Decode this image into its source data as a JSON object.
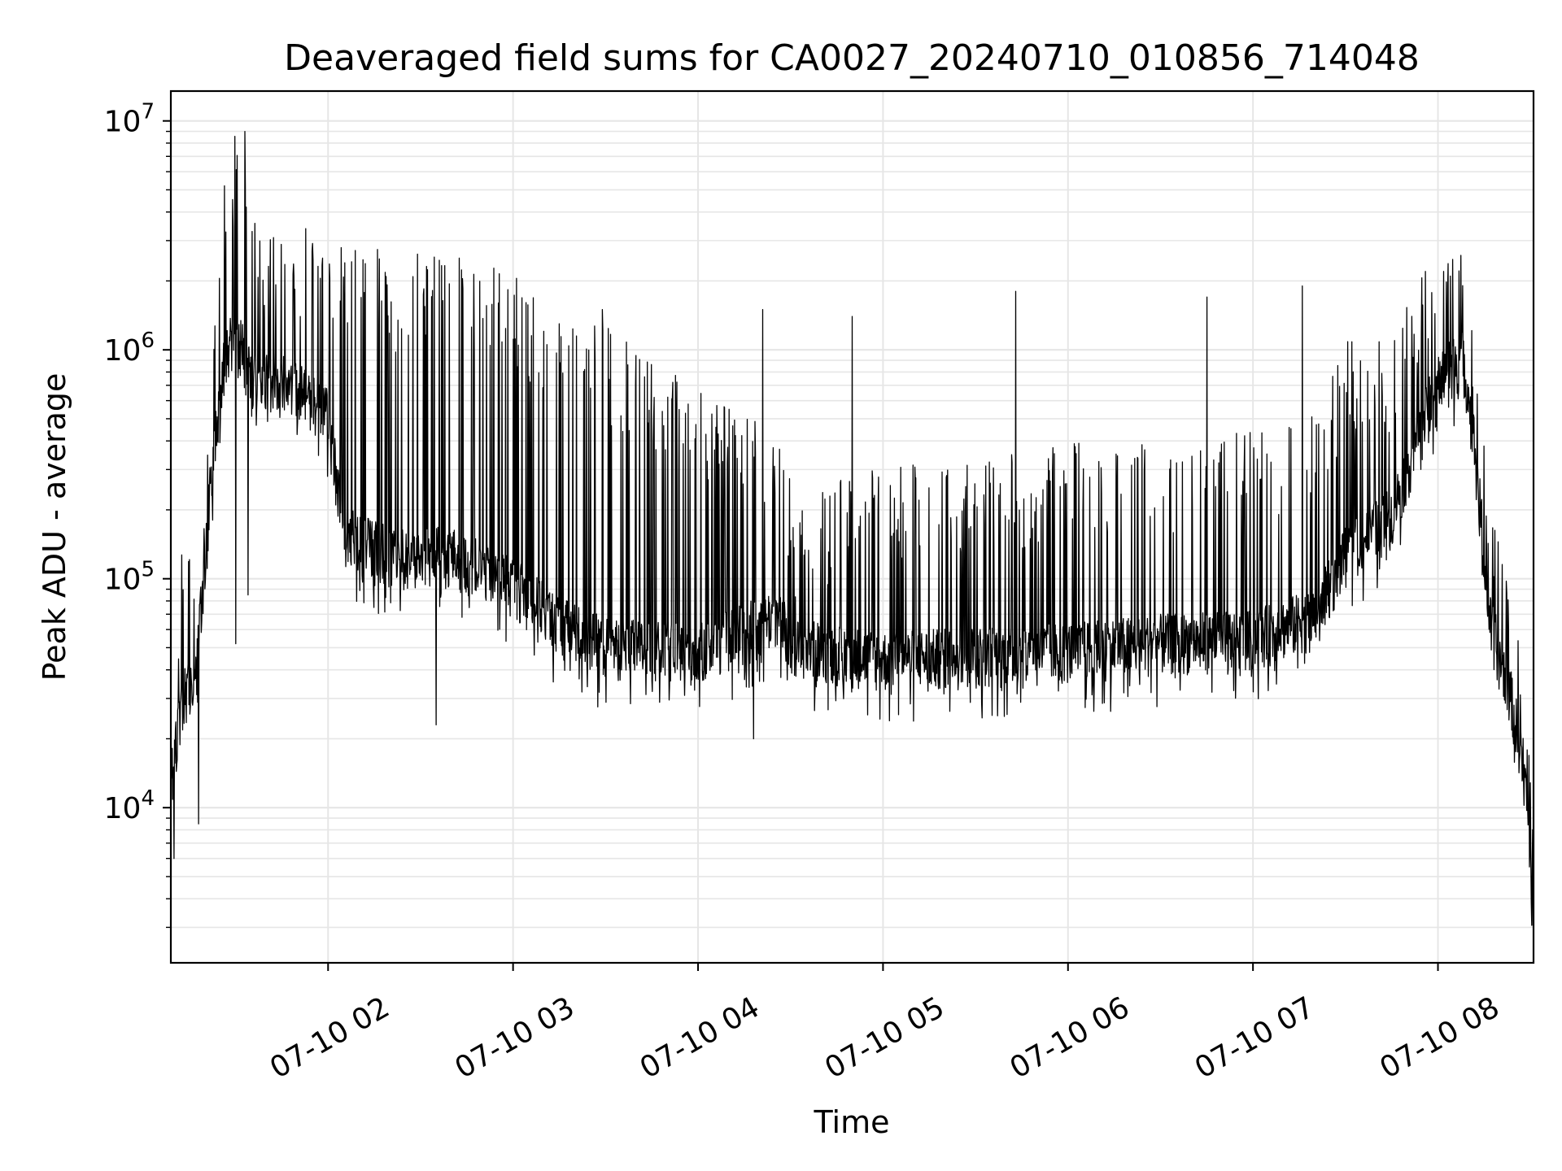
{
  "chart_data": {
    "type": "line",
    "title": "Deaveraged field sums for CA0027_20240710_010856_714048",
    "xlabel": "Time",
    "ylabel": "Peak ADU - average",
    "yscale": "log",
    "ylim": [
      2100,
      13500000
    ],
    "xlim": [
      "2024-07-10 01:09",
      "2024-07-10 08:31"
    ],
    "grid": true,
    "line_color": "#000000",
    "grid_color": "#e6e6e6",
    "x_ticks": [
      {
        "value": "2024-07-10 02:00",
        "label": "07-10 02"
      },
      {
        "value": "2024-07-10 03:00",
        "label": "07-10 03"
      },
      {
        "value": "2024-07-10 04:00",
        "label": "07-10 04"
      },
      {
        "value": "2024-07-10 05:00",
        "label": "07-10 05"
      },
      {
        "value": "2024-07-10 06:00",
        "label": "07-10 06"
      },
      {
        "value": "2024-07-10 07:00",
        "label": "07-10 07"
      },
      {
        "value": "2024-07-10 08:00",
        "label": "07-10 08"
      }
    ],
    "y_ticks": [
      {
        "value": 10000,
        "base": "10",
        "exp": "4"
      },
      {
        "value": 100000,
        "base": "10",
        "exp": "5"
      },
      {
        "value": 1000000,
        "base": "10",
        "exp": "6"
      },
      {
        "value": 10000000,
        "base": "10",
        "exp": "7"
      }
    ],
    "envelope": [
      {
        "time": "2024-07-10 01:09",
        "base": 12000,
        "peak": 20000
      },
      {
        "time": "2024-07-10 01:13",
        "base": 30000,
        "peak": 75000
      },
      {
        "time": "2024-07-10 01:17",
        "base": 35000,
        "peak": 60000
      },
      {
        "time": "2024-07-10 01:22",
        "base": 250000,
        "peak": 400000
      },
      {
        "time": "2024-07-10 01:26",
        "base": 800000,
        "peak": 2500000
      },
      {
        "time": "2024-07-10 01:30",
        "base": 1200000,
        "peak": 4500000
      },
      {
        "time": "2024-07-10 01:35",
        "base": 700000,
        "peak": 1800000
      },
      {
        "time": "2024-07-10 01:45",
        "base": 700000,
        "peak": 1600000
      },
      {
        "time": "2024-07-10 02:00",
        "base": 500000,
        "peak": 1800000
      },
      {
        "time": "2024-07-10 02:05",
        "base": 150000,
        "peak": 1400000
      },
      {
        "time": "2024-07-10 02:20",
        "base": 120000,
        "peak": 1200000
      },
      {
        "time": "2024-07-10 02:40",
        "base": 120000,
        "peak": 1200000
      },
      {
        "time": "2024-07-10 03:00",
        "base": 90000,
        "peak": 1000000
      },
      {
        "time": "2024-07-10 03:15",
        "base": 60000,
        "peak": 700000
      },
      {
        "time": "2024-07-10 03:30",
        "base": 48000,
        "peak": 600000
      },
      {
        "time": "2024-07-10 04:00",
        "base": 45000,
        "peak": 300000
      },
      {
        "time": "2024-07-10 04:25",
        "base": 65000,
        "peak": 200000
      },
      {
        "time": "2024-07-10 04:32",
        "base": 48000,
        "peak": 100000
      },
      {
        "time": "2024-07-10 05:00",
        "base": 42000,
        "peak": 150000
      },
      {
        "time": "2024-07-10 05:30",
        "base": 44000,
        "peak": 150000
      },
      {
        "time": "2024-07-10 06:00",
        "base": 46000,
        "peak": 180000
      },
      {
        "time": "2024-07-10 06:30",
        "base": 50000,
        "peak": 180000
      },
      {
        "time": "2024-07-10 07:00",
        "base": 52000,
        "peak": 200000
      },
      {
        "time": "2024-07-10 07:20",
        "base": 65000,
        "peak": 250000
      },
      {
        "time": "2024-07-10 07:30",
        "base": 120000,
        "peak": 500000
      },
      {
        "time": "2024-07-10 07:45",
        "base": 180000,
        "peak": 500000
      },
      {
        "time": "2024-07-10 08:00",
        "base": 700000,
        "peak": 1400000
      },
      {
        "time": "2024-07-10 08:08",
        "base": 900000,
        "peak": 1400000
      },
      {
        "time": "2024-07-10 08:12",
        "base": 350000,
        "peak": 500000
      },
      {
        "time": "2024-07-10 08:17",
        "base": 60000,
        "peak": 100000
      },
      {
        "time": "2024-07-10 08:23",
        "base": 32000,
        "peak": 45000
      },
      {
        "time": "2024-07-10 08:28",
        "base": 14000,
        "peak": 18000
      },
      {
        "time": "2024-07-10 08:31",
        "base": 3600,
        "peak": 5000
      }
    ],
    "spikes": [
      {
        "time": "2024-07-10 01:10",
        "value": 6000
      },
      {
        "time": "2024-07-10 01:18",
        "value": 8500
      },
      {
        "time": "2024-07-10 01:33",
        "value": 9000000
      },
      {
        "time": "2024-07-10 01:30",
        "value": 52000
      },
      {
        "time": "2024-07-10 01:34",
        "value": 85000
      },
      {
        "time": "2024-07-10 01:49",
        "value": 2100000
      },
      {
        "time": "2024-07-10 02:35",
        "value": 23000
      },
      {
        "time": "2024-07-10 03:29",
        "value": 1500000
      },
      {
        "time": "2024-07-10 04:18",
        "value": 20000
      },
      {
        "time": "2024-07-10 04:21",
        "value": 1500000
      },
      {
        "time": "2024-07-10 04:50",
        "value": 1400000
      },
      {
        "time": "2024-07-10 05:43",
        "value": 1800000
      },
      {
        "time": "2024-07-10 06:45",
        "value": 1700000
      },
      {
        "time": "2024-07-10 07:16",
        "value": 1900000
      },
      {
        "time": "2024-07-10 07:56",
        "value": 2200000
      },
      {
        "time": "2024-07-10 08:04",
        "value": 2100000
      }
    ]
  }
}
